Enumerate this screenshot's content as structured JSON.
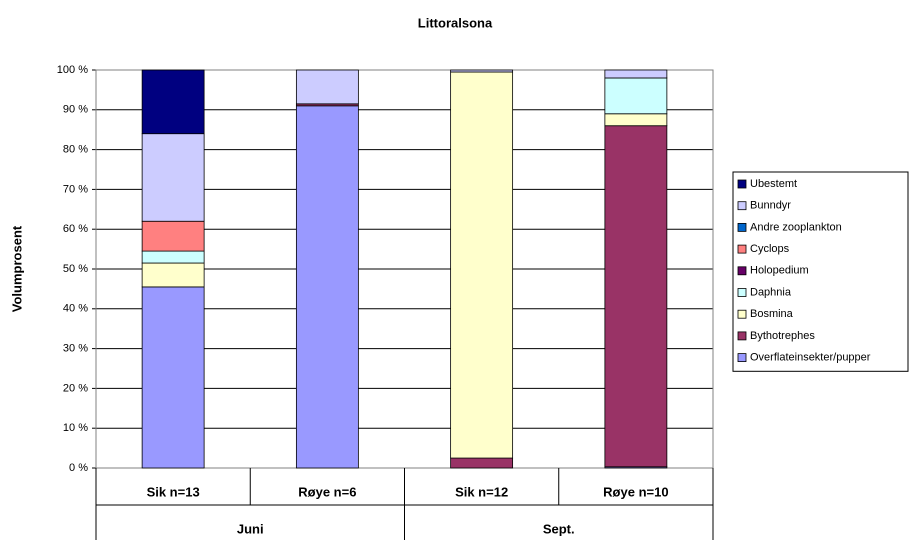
{
  "chart_data": {
    "type": "stacked_bar",
    "title": "Littoralsona",
    "y_label": "Volumprosent",
    "categories": [
      "Sik n=13",
      "Røye n=6",
      "Sik n=12",
      "Røye n=10"
    ],
    "groups": [
      "Juni",
      "Sept."
    ],
    "ylim": [
      0,
      100
    ],
    "yticks": [
      {
        "value": 0,
        "label": "0 %"
      },
      {
        "value": 10,
        "label": "10 %"
      },
      {
        "value": 20,
        "label": "20 %"
      },
      {
        "value": 30,
        "label": "30 %"
      },
      {
        "value": 40,
        "label": "40 %"
      },
      {
        "value": 50,
        "label": "50 %"
      },
      {
        "value": 60,
        "label": "60 %"
      },
      {
        "value": 70,
        "label": "70 %"
      },
      {
        "value": 80,
        "label": "80 %"
      },
      {
        "value": 90,
        "label": "90 %"
      },
      {
        "value": 100,
        "label": "100 %"
      }
    ],
    "grid": true,
    "legend": "right",
    "series": [
      {
        "name": "Overflateinsekter/pupper",
        "color": "#9999ff",
        "values": [
          45.5,
          91,
          0,
          0.3
        ]
      },
      {
        "name": "Bythotrephes",
        "color": "#993366",
        "values": [
          0,
          0.5,
          2.5,
          85.7
        ]
      },
      {
        "name": "Bosmina",
        "color": "#ffffcc",
        "values": [
          6,
          0,
          97,
          3
        ]
      },
      {
        "name": "Daphnia",
        "color": "#ccffff",
        "values": [
          3,
          0,
          0,
          9
        ]
      },
      {
        "name": "Holopedium",
        "color": "#660066",
        "values": [
          0,
          0,
          0,
          0
        ]
      },
      {
        "name": "Cyclops",
        "color": "#ff8080",
        "values": [
          7.5,
          0,
          0,
          0
        ]
      },
      {
        "name": "Andre zooplankton",
        "color": "#0066cc",
        "values": [
          0,
          0,
          0,
          0
        ]
      },
      {
        "name": "Bunndyr",
        "color": "#ccccff",
        "values": [
          22,
          8.5,
          0.5,
          2
        ]
      },
      {
        "name": "Ubestemt",
        "color": "#000080",
        "values": [
          16,
          0,
          0,
          0
        ]
      }
    ]
  }
}
